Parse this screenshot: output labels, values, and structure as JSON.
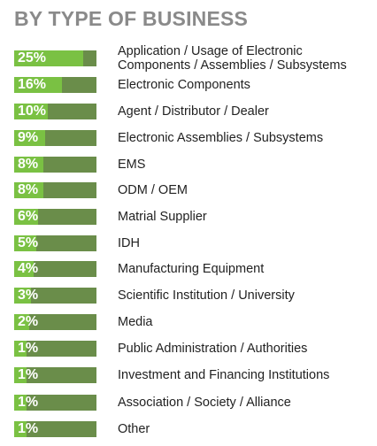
{
  "chart_data": {
    "type": "bar",
    "title": "BY TYPE OF BUSINESS",
    "orientation": "horizontal",
    "unit": "%",
    "categories": [
      "Application / Usage of Electronic Components / Assemblies / Subsystems",
      "Electronic Components",
      "Agent / Distributor / Dealer",
      "Electronic Assemblies / Subsystems",
      "EMS",
      "ODM / OEM",
      "Matrial Supplier",
      "IDH",
      "Manufacturing Equipment",
      "Scientific Institution / University",
      "Media",
      "Public Administration / Authorities",
      "Investment and Financing Institutions",
      "Association / Society / Alliance",
      "Other"
    ],
    "values": [
      25,
      16,
      10,
      9,
      8,
      8,
      6,
      5,
      4,
      3,
      2,
      1,
      1,
      1,
      1
    ],
    "value_labels": [
      "25%",
      "16%",
      "10%",
      "9%",
      "8%",
      "8%",
      "6%",
      "5%",
      "4%",
      "3%",
      "2%",
      "1%",
      "1%",
      "1%",
      "1%"
    ],
    "label_lines": [
      [
        "Application / Usage of Electronic",
        "Components / Assemblies / Subsystems"
      ],
      [
        "Electronic Components"
      ],
      [
        "Agent / Distributor / Dealer"
      ],
      [
        "Electronic Assemblies / Subsystems"
      ],
      [
        "EMS"
      ],
      [
        "ODM / OEM"
      ],
      [
        "Matrial Supplier"
      ],
      [
        "IDH"
      ],
      [
        "Manufacturing Equipment"
      ],
      [
        "Scientific Institution / University"
      ],
      [
        "Media"
      ],
      [
        "Public Administration / Authorities"
      ],
      [
        "Investment and Financing Institutions"
      ],
      [
        "Association / Society / Alliance"
      ],
      [
        "Other"
      ]
    ],
    "xlim": [
      0,
      25
    ],
    "grid": false,
    "legend": "none"
  },
  "colors": {
    "title": "#8a8a8a",
    "bar_track": "#6a8d4a",
    "bar_fill": "#7ac143",
    "value_text": "#ffffff",
    "label_text": "#222222"
  }
}
